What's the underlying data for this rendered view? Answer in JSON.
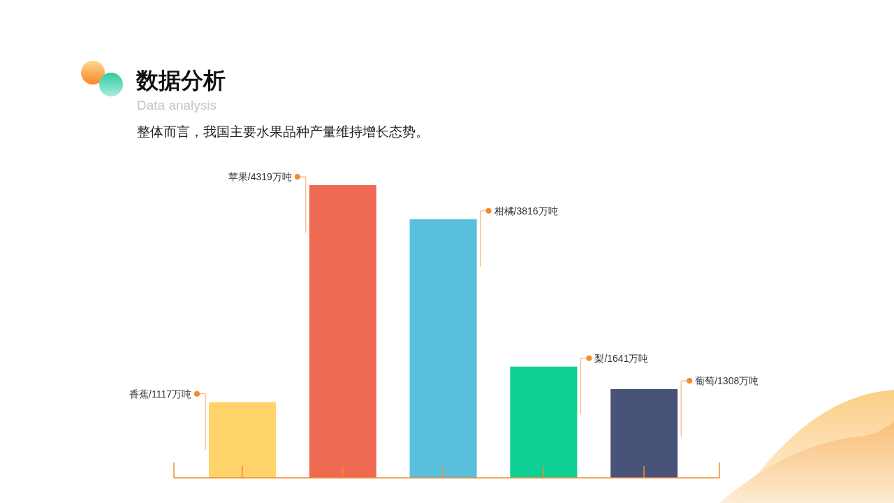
{
  "chart_data": {
    "type": "bar",
    "title": "数据分析",
    "subtitle": "Data analysis",
    "annotations": [
      "整体而言，我国主要水果品种产量维持增长态势。"
    ],
    "categories": [
      null,
      null,
      null,
      null,
      null
    ],
    "values": [
      1117,
      4319,
      3816,
      1641,
      1308
    ],
    "colors": [
      "#fdd36a",
      "#ee6a52",
      "#58bfdd",
      "#0fcf95",
      "#48537a"
    ],
    "value_labels": [
      "香蕉/1117万吨",
      "苹果/4319万吨",
      "柑橘/3816万吨",
      "梨/1641万吨",
      "葡萄/1308万吨"
    ]
  }
}
